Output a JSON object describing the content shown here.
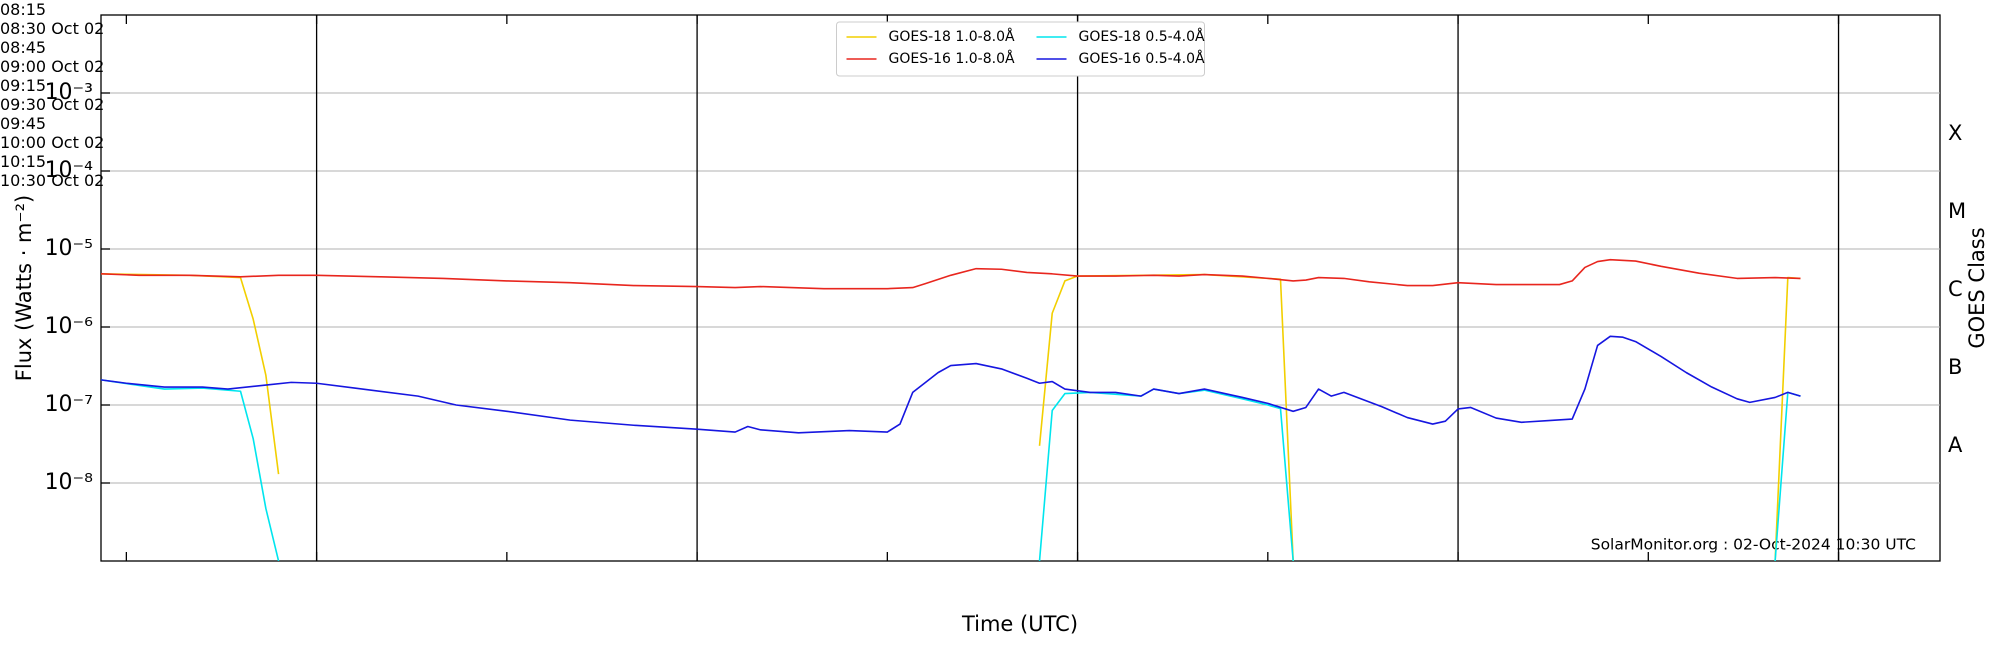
{
  "chart_data": {
    "type": "line",
    "xlabel": "Time (UTC)",
    "ylabel": "Flux (Watts · m⁻²)",
    "y2label": "GOES Class",
    "annotation": "SolarMonitor.org : 02-Oct-2024 10:30 UTC",
    "yscale": "log",
    "grid": "y",
    "xgrid": "dated",
    "legend": "upper center",
    "legend_columns": 2,
    "xlim": [
      "08:13",
      "10:38"
    ],
    "xticks": [
      "08:15",
      {
        "value": "08:30",
        "label": "08:30\nOct 02"
      },
      "08:45",
      {
        "value": "09:00",
        "label": "09:00\nOct 02"
      },
      "09:15",
      {
        "value": "09:30",
        "label": "09:30\nOct 02"
      },
      "09:45",
      {
        "value": "10:00",
        "label": "10:00\nOct 02"
      },
      "10:15",
      {
        "value": "10:30",
        "label": "10:30\nOct 02"
      }
    ],
    "ylim": [
      1e-09,
      0.01
    ],
    "yticks": [
      {
        "value": 1e-08,
        "label": "10⁻⁸"
      },
      {
        "value": 1e-07,
        "label": "10⁻⁷"
      },
      {
        "value": 1e-06,
        "label": "10⁻⁶"
      },
      {
        "value": 1e-05,
        "label": "10⁻⁵"
      },
      {
        "value": 0.0001,
        "label": "10⁻⁴"
      },
      {
        "value": 0.001,
        "label": "10⁻³"
      }
    ],
    "y2lim": [
      1e-09,
      0.01
    ],
    "y2ticks": [
      {
        "value": 3e-08,
        "label": "A"
      },
      {
        "value": 3e-07,
        "label": "B"
      },
      {
        "value": 3e-06,
        "label": "C"
      },
      {
        "value": 3e-05,
        "label": "M"
      },
      {
        "value": 0.0003,
        "label": "X"
      }
    ],
    "series": [
      {
        "name": "GOES-18 1.0-8.0Å",
        "color": "#f2cf00",
        "x": [
          "08:13",
          "08:20",
          "08:24",
          "08:25",
          "08:26",
          "08:27",
          "08:28",
          "09:27",
          "09:28",
          "09:29",
          "09:30",
          "09:40",
          "09:46",
          "09:47",
          "10:00",
          "10:25",
          "10:26",
          "10:27"
        ],
        "values": [
          4.8e-06,
          4.6e-06,
          4.3e-06,
          1.26e-06,
          2.4e-07,
          1.3e-08,
          null,
          3e-08,
          1.5e-06,
          3.9e-06,
          4.5e-06,
          4.7e-06,
          4.1e-06,
          1e-09,
          null,
          1e-09,
          4.3e-06,
          4.2e-06
        ]
      },
      {
        "name": "GOES-16 1.0-8.0Å",
        "color": "#e8261e",
        "x": [
          "08:13",
          "08:16",
          "08:20",
          "08:24",
          "08:27",
          "08:30",
          "08:35",
          "08:40",
          "08:45",
          "08:50",
          "08:55",
          "09:00",
          "09:03",
          "09:05",
          "09:10",
          "09:15",
          "09:17",
          "09:18",
          "09:20",
          "09:22",
          "09:24",
          "09:26",
          "09:28",
          "09:30",
          "09:33",
          "09:36",
          "09:38",
          "09:40",
          "09:43",
          "09:45",
          "09:47",
          "09:48",
          "09:49",
          "09:51",
          "09:53",
          "09:56",
          "09:58",
          "10:00",
          "10:03",
          "10:06",
          "10:08",
          "10:09",
          "10:10",
          "10:11",
          "10:12",
          "10:14",
          "10:16",
          "10:19",
          "10:22",
          "10:25",
          "10:27"
        ],
        "values": [
          4.8e-06,
          4.6e-06,
          4.6e-06,
          4.4e-06,
          4.6e-06,
          4.6e-06,
          4.4e-06,
          4.2e-06,
          3.9e-06,
          3.7e-06,
          3.4e-06,
          3.3e-06,
          3.2e-06,
          3.3e-06,
          3.1e-06,
          3.1e-06,
          3.2e-06,
          3.6e-06,
          4.6e-06,
          5.6e-06,
          5.5e-06,
          5e-06,
          4.8e-06,
          4.5e-06,
          4.5e-06,
          4.6e-06,
          4.5e-06,
          4.7e-06,
          4.5e-06,
          4.2e-06,
          3.9e-06,
          4e-06,
          4.3e-06,
          4.2e-06,
          3.8e-06,
          3.4e-06,
          3.4e-06,
          3.7e-06,
          3.5e-06,
          3.5e-06,
          3.5e-06,
          3.9e-06,
          5.8e-06,
          6.9e-06,
          7.3e-06,
          7e-06,
          6e-06,
          4.9e-06,
          4.2e-06,
          4.3e-06,
          4.2e-06
        ]
      },
      {
        "name": "GOES-18 0.5-4.0Å",
        "color": "#00e5ee",
        "x": [
          "08:13",
          "08:18",
          "08:21",
          "08:24",
          "08:25",
          "08:26",
          "08:27",
          "08:28",
          "09:27",
          "09:28",
          "09:29",
          "09:31",
          "09:35",
          "09:36",
          "09:38",
          "09:40",
          "09:43",
          "09:45",
          "09:46",
          "09:47",
          "10:00",
          "10:25",
          "10:26",
          "10:27"
        ],
        "values": [
          2.1e-07,
          1.6e-07,
          1.65e-07,
          1.5e-07,
          3.7e-08,
          4.7e-09,
          1e-09,
          null,
          1e-09,
          8.5e-08,
          1.4e-07,
          1.45e-07,
          1.3e-07,
          1.6e-07,
          1.4e-07,
          1.55e-07,
          1.2e-07,
          1e-07,
          9e-08,
          1e-09,
          null,
          1e-09,
          1.45e-07,
          1.3e-07
        ]
      },
      {
        "name": "GOES-16 0.5-4.0Å",
        "color": "#1616e0",
        "x": [
          "08:13",
          "08:15",
          "08:18",
          "08:21",
          "08:23",
          "08:26",
          "08:28",
          "08:30",
          "08:33",
          "08:38",
          "08:41",
          "08:45",
          "08:50",
          "08:55",
          "09:00",
          "09:03",
          "09:04",
          "09:05",
          "09:08",
          "09:12",
          "09:15",
          "09:16",
          "09:17",
          "09:19",
          "09:20",
          "09:22",
          "09:24",
          "09:26",
          "09:27",
          "09:28",
          "09:29",
          "09:31",
          "09:33",
          "09:35",
          "09:36",
          "09:38",
          "09:40",
          "09:43",
          "09:45",
          "09:47",
          "09:48",
          "09:49",
          "09:50",
          "09:51",
          "09:54",
          "09:56",
          "09:58",
          "09:59",
          "10:00",
          "10:01",
          "10:03",
          "10:05",
          "10:07",
          "10:09",
          "10:10",
          "10:11",
          "10:12",
          "10:13",
          "10:14",
          "10:16",
          "10:18",
          "10:20",
          "10:22",
          "10:23",
          "10:25",
          "10:26",
          "10:27"
        ],
        "values": [
          2.1e-07,
          1.9e-07,
          1.7e-07,
          1.7e-07,
          1.6e-07,
          1.8e-07,
          1.95e-07,
          1.9e-07,
          1.65e-07,
          1.3e-07,
          1e-07,
          8.3e-08,
          6.4e-08,
          5.5e-08,
          4.9e-08,
          4.5e-08,
          5.3e-08,
          4.8e-08,
          4.4e-08,
          4.7e-08,
          4.5e-08,
          5.7e-08,
          1.45e-07,
          2.6e-07,
          3.2e-07,
          3.4e-07,
          2.9e-07,
          2.2e-07,
          1.9e-07,
          2e-07,
          1.6e-07,
          1.45e-07,
          1.45e-07,
          1.3e-07,
          1.6e-07,
          1.4e-07,
          1.6e-07,
          1.25e-07,
          1.05e-07,
          8.3e-08,
          9.3e-08,
          1.6e-07,
          1.3e-07,
          1.45e-07,
          9.5e-08,
          6.9e-08,
          5.7e-08,
          6.2e-08,
          8.9e-08,
          9.3e-08,
          6.8e-08,
          6e-08,
          6.3e-08,
          6.6e-08,
          1.6e-07,
          5.8e-07,
          7.6e-07,
          7.4e-07,
          6.5e-07,
          4.2e-07,
          2.6e-07,
          1.7e-07,
          1.2e-07,
          1.08e-07,
          1.25e-07,
          1.45e-07,
          1.3e-07
        ]
      }
    ]
  }
}
